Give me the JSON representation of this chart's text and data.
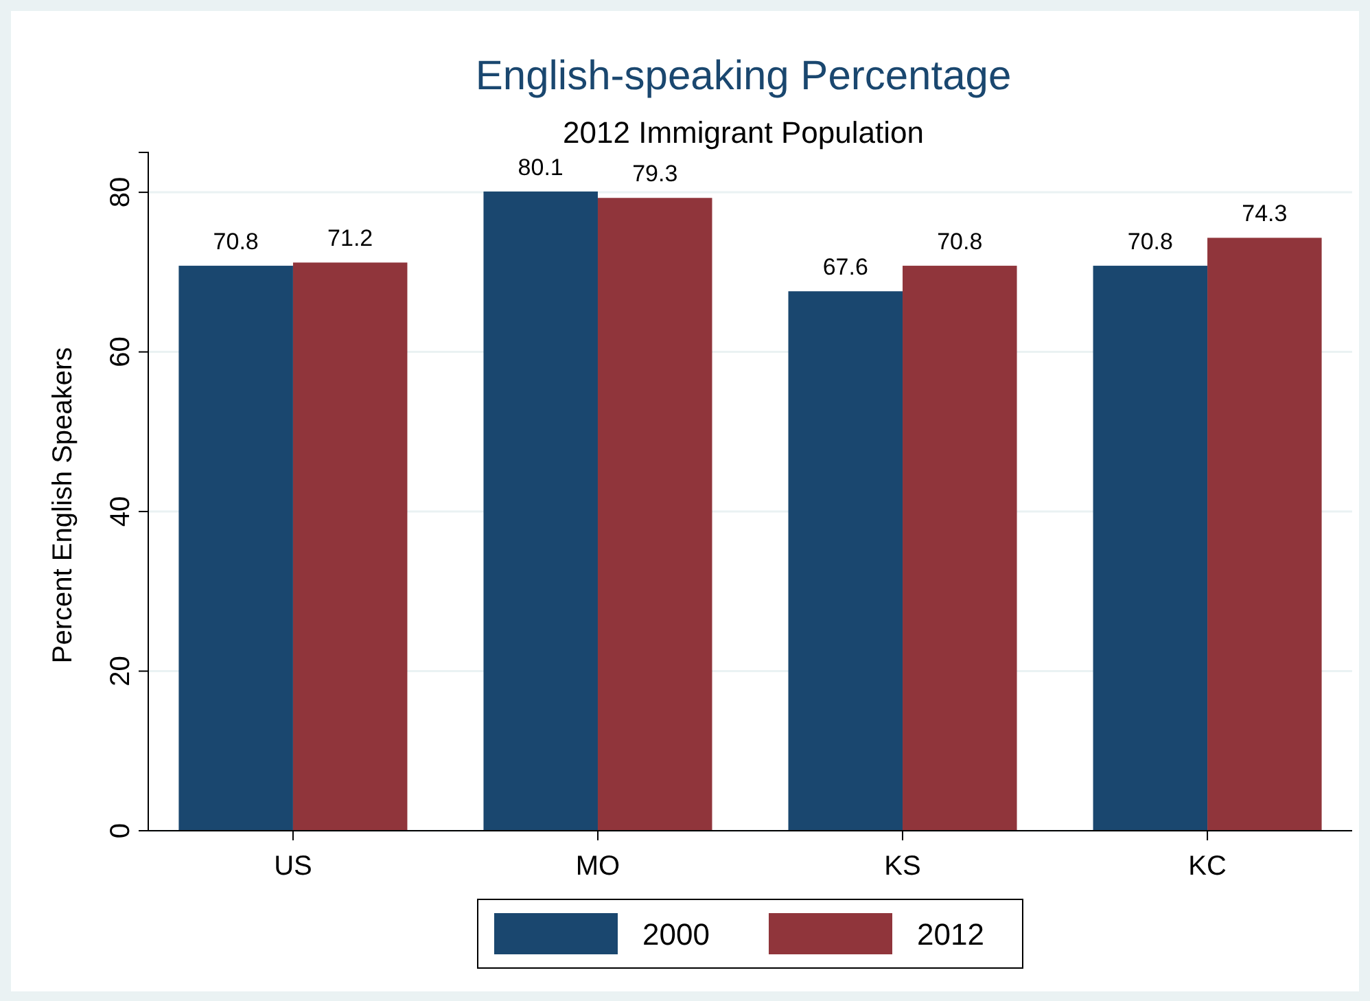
{
  "chart_data": {
    "type": "bar",
    "title": "English-speaking Percentage",
    "subtitle": "2012 Immigrant Population",
    "ylabel": "Percent English Speakers",
    "categories": [
      "US",
      "MO",
      "KS",
      "KC"
    ],
    "series": [
      {
        "name": "2000",
        "color": "#1a476f",
        "values": [
          70.8,
          80.1,
          67.6,
          70.8
        ]
      },
      {
        "name": "2012",
        "color": "#90353b",
        "values": [
          71.2,
          79.3,
          70.8,
          74.3
        ]
      }
    ],
    "ylim": [
      0,
      85
    ],
    "yticks": [
      0,
      20,
      40,
      60,
      80
    ],
    "grid": "y",
    "legend": "bottom",
    "data_labels": true
  }
}
